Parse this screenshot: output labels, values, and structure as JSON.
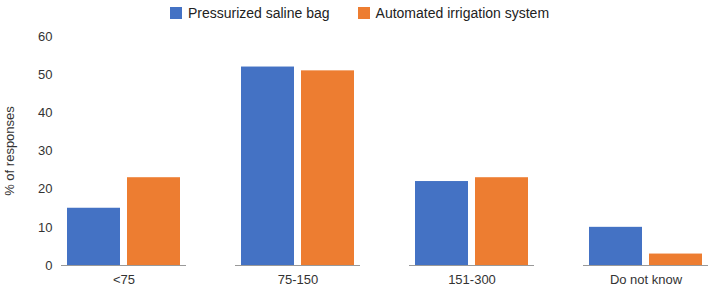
{
  "chart_data": {
    "type": "bar",
    "categories": [
      "<75",
      "75-150",
      "151-300",
      "Do not know"
    ],
    "series": [
      {
        "name": "Pressurized saline bag",
        "color": "#4472c4",
        "values": [
          15,
          52,
          22,
          10
        ]
      },
      {
        "name": "Automated irrigation system",
        "color": "#ed7d31",
        "values": [
          23,
          51,
          23,
          3
        ]
      }
    ],
    "ylabel": "% of responses",
    "ylim": [
      0,
      60
    ],
    "yticks": [
      0,
      10,
      20,
      30,
      40,
      50,
      60
    ],
    "grid": false,
    "legend": "top"
  }
}
